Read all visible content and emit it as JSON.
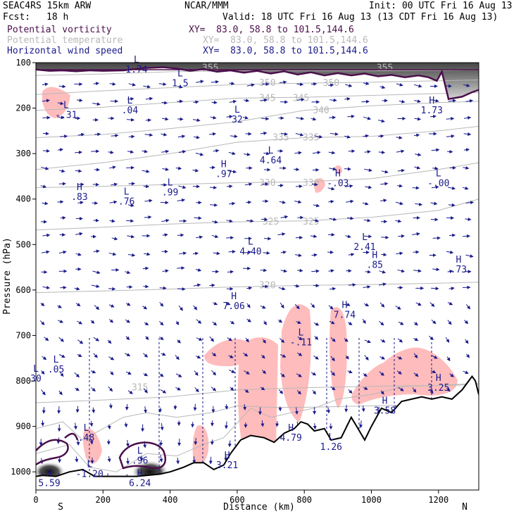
{
  "header": {
    "model": "SEAC4RS 15km ARW",
    "org": "NCAR/MMM",
    "init": "Init: 00 UTC Fri 16 Aug 13",
    "fcst_label": "Fcst:",
    "fcst_value": "18 h",
    "valid": "Valid: 18 UTC Fri 16 Aug 13 (13 CDT Fri 16 Aug 13)",
    "fields": [
      {
        "name": "Potential vorticity",
        "xy": "XY=  83.0, 58.8 to 101.5,144.6",
        "color": "#4b0f4b"
      },
      {
        "name": "Potential temperature",
        "xy": "XY=  83.0, 58.8 to 101.5,144.6",
        "color": "#b8b8b8"
      },
      {
        "name": "Horizontal wind speed",
        "xy": "XY=  83.0, 58.8 to 101.5,144.6",
        "color": "#1a1a8c"
      }
    ]
  },
  "chart_data": {
    "type": "cross-section",
    "xlabel": "Distance (km)",
    "ylabel": "Pressure (hPa)",
    "xlim": [
      0,
      1320
    ],
    "ylim": [
      1040,
      100
    ],
    "x_ticks": [
      "0",
      "200",
      "400",
      "600",
      "800",
      "1000",
      "1200"
    ],
    "y_ticks": [
      "100",
      "200",
      "300",
      "400",
      "500",
      "600",
      "700",
      "800",
      "900",
      "1000"
    ],
    "ends": {
      "left": "S",
      "right": "N"
    },
    "theta_contours": [
      {
        "value": "315",
        "x": 310,
        "p": 815
      },
      {
        "value": "320",
        "x": 690,
        "p": 590
      },
      {
        "value": "325",
        "x": 700,
        "p": 450
      },
      {
        "value": "325",
        "x": 820,
        "p": 450
      },
      {
        "value": "330",
        "x": 690,
        "p": 365
      },
      {
        "value": "330",
        "x": 820,
        "p": 365
      },
      {
        "value": "335",
        "x": 730,
        "p": 265
      },
      {
        "value": "335",
        "x": 820,
        "p": 265
      },
      {
        "value": "340",
        "x": 850,
        "p": 205
      },
      {
        "value": "345",
        "x": 690,
        "p": 178
      },
      {
        "value": "345",
        "x": 790,
        "p": 178
      },
      {
        "value": "350",
        "x": 690,
        "p": 145
      },
      {
        "value": "350",
        "x": 880,
        "p": 145
      },
      {
        "value": "355",
        "x": 520,
        "p": 112
      },
      {
        "value": "355",
        "x": 1040,
        "p": 112
      }
    ],
    "highs_lows": [
      {
        "type": "H",
        "value": ".83",
        "x": 130,
        "p": 380
      },
      {
        "type": "L",
        "value": "-.31",
        "x": 90,
        "p": 200
      },
      {
        "type": "L",
        "value": ".04",
        "x": 280,
        "p": 190
      },
      {
        "type": "L",
        "value": "1.74",
        "x": 300,
        "p": 100
      },
      {
        "type": "L",
        "value": "1.5",
        "x": 430,
        "p": 130
      },
      {
        "type": "L",
        "value": ".76",
        "x": 270,
        "p": 390
      },
      {
        "type": "L",
        "value": ".99",
        "x": 400,
        "p": 370
      },
      {
        "type": "H",
        "value": ".97",
        "x": 560,
        "p": 330
      },
      {
        "type": "L",
        "value": "4.64",
        "x": 700,
        "p": 300
      },
      {
        "type": "L",
        "value": "32",
        "x": 600,
        "p": 210
      },
      {
        "type": "H",
        "value": "-.03",
        "x": 900,
        "p": 350
      },
      {
        "type": "L",
        "value": "-.00",
        "x": 1200,
        "p": 350
      },
      {
        "type": "H",
        "value": "1.73",
        "x": 1180,
        "p": 190
      },
      {
        "type": "L",
        "value": "4.40",
        "x": 640,
        "p": 500
      },
      {
        "type": "L",
        "value": "2.41",
        "x": 980,
        "p": 490
      },
      {
        "type": "H",
        "value": ".85",
        "x": 1010,
        "p": 530
      },
      {
        "type": "H",
        "value": ".73",
        "x": 1260,
        "p": 540
      },
      {
        "type": "H",
        "value": "7.06",
        "x": 590,
        "p": 620
      },
      {
        "type": "H",
        "value": "7.74",
        "x": 920,
        "p": 640
      },
      {
        "type": "L",
        "value": "-.11",
        "x": 790,
        "p": 700
      },
      {
        "type": "L",
        "value": ".05",
        "x": 60,
        "p": 760
      },
      {
        "type": "L",
        "value": "30",
        "x": 0,
        "p": 780
      },
      {
        "type": "H",
        "value": "3.58",
        "x": 1040,
        "p": 850
      },
      {
        "type": "H",
        "value": "3.25",
        "x": 1200,
        "p": 800
      },
      {
        "type": "L",
        "value": ".48",
        "x": 150,
        "p": 910
      },
      {
        "type": "H",
        "value": "4.79",
        "x": 760,
        "p": 910
      },
      {
        "type": "L",
        "value": "1.26",
        "x": 880,
        "p": 930
      },
      {
        "type": "H",
        "value": "3.21",
        "x": 570,
        "p": 970
      },
      {
        "type": "L",
        "value": "-1.20",
        "x": 160,
        "p": 990
      },
      {
        "type": "L",
        "value": ".96",
        "x": 310,
        "p": 960
      },
      {
        "type": "H",
        "value": "6.24",
        "x": 310,
        "p": 1010
      },
      {
        "type": "H",
        "value": "5.59",
        "x": 40,
        "p": 1010
      }
    ],
    "terrain_p": [
      [
        0,
        1010
      ],
      [
        20,
        1008
      ],
      [
        60,
        1010
      ],
      [
        100,
        1000
      ],
      [
        140,
        995
      ],
      [
        175,
        1010
      ],
      [
        200,
        1010
      ],
      [
        250,
        1010
      ],
      [
        300,
        1010
      ],
      [
        370,
        1005
      ],
      [
        400,
        1000
      ],
      [
        440,
        990
      ],
      [
        470,
        980
      ],
      [
        500,
        980
      ],
      [
        530,
        995
      ],
      [
        560,
        985
      ],
      [
        580,
        960
      ],
      [
        610,
        930
      ],
      [
        640,
        920
      ],
      [
        680,
        925
      ],
      [
        710,
        935
      ],
      [
        740,
        915
      ],
      [
        770,
        905
      ],
      [
        790,
        890
      ],
      [
        810,
        895
      ],
      [
        830,
        910
      ],
      [
        860,
        905
      ],
      [
        880,
        930
      ],
      [
        910,
        925
      ],
      [
        940,
        880
      ],
      [
        960,
        905
      ],
      [
        980,
        930
      ],
      [
        1000,
        900
      ],
      [
        1030,
        860
      ],
      [
        1060,
        870
      ],
      [
        1090,
        845
      ],
      [
        1120,
        840
      ],
      [
        1150,
        835
      ],
      [
        1180,
        840
      ],
      [
        1210,
        835
      ],
      [
        1240,
        840
      ],
      [
        1270,
        820
      ],
      [
        1300,
        790
      ],
      [
        1310,
        800
      ],
      [
        1320,
        830
      ]
    ],
    "tropopause_p": [
      [
        0,
        115
      ],
      [
        40,
        118
      ],
      [
        80,
        117
      ],
      [
        120,
        119
      ],
      [
        160,
        117
      ],
      [
        200,
        118
      ],
      [
        260,
        117
      ],
      [
        320,
        112
      ],
      [
        380,
        110
      ],
      [
        420,
        113
      ],
      [
        460,
        118
      ],
      [
        500,
        114
      ],
      [
        540,
        120
      ],
      [
        580,
        117
      ],
      [
        620,
        122
      ],
      [
        660,
        118
      ],
      [
        700,
        124
      ],
      [
        740,
        119
      ],
      [
        780,
        126
      ],
      [
        820,
        121
      ],
      [
        860,
        128
      ],
      [
        900,
        123
      ],
      [
        940,
        128
      ],
      [
        980,
        124
      ],
      [
        1020,
        130
      ],
      [
        1060,
        127
      ],
      [
        1100,
        132
      ],
      [
        1140,
        128
      ],
      [
        1170,
        132
      ],
      [
        1195,
        140
      ],
      [
        1210,
        120
      ],
      [
        1230,
        180
      ],
      [
        1270,
        175
      ],
      [
        1300,
        165
      ],
      [
        1320,
        160
      ]
    ],
    "colors": {
      "pv": "#4b0f4b",
      "theta": "#b8b8b8",
      "wind": "#1a1a8c",
      "negative_pv": "#ffbcbc",
      "terrain": "#000000"
    }
  }
}
